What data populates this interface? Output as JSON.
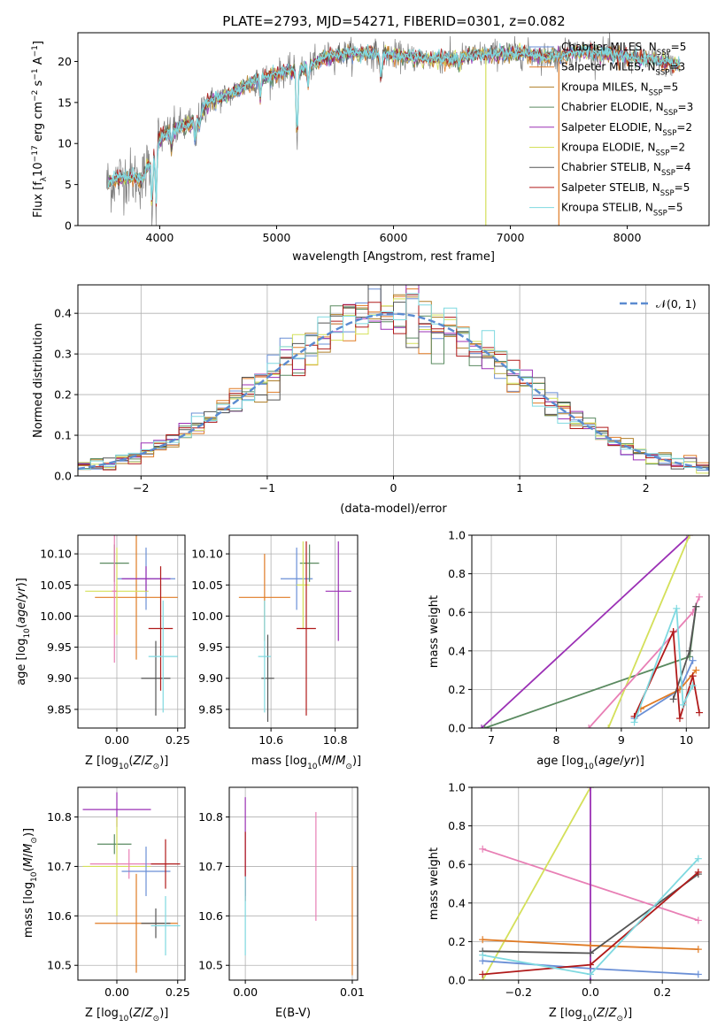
{
  "figure": {
    "title": "PLATE=2793, MJD=54271, FIBERID=0301, z=0.082"
  },
  "colors": {
    "Chabrier MILES": "#6a8fd6",
    "Salpeter MILES": "#e07b25",
    "Kroupa MILES": "#b07f2a",
    "Chabrier ELODIE": "#5a8a60",
    "Salpeter ELODIE": "#9b30b5",
    "Kroupa ELODIE": "#d4e05a",
    "Chabrier STELIB": "#555555",
    "Salpeter STELIB": "#b01a1a",
    "Kroupa STELIB": "#7fd9e0",
    "pink": "#e87fb5",
    "normal_curve": "#5b8bd0"
  },
  "chart_data": [
    {
      "id": "spectrum",
      "type": "line",
      "title": "PLATE=2793, MJD=54271, FIBERID=0301, z=0.082",
      "xlabel": "wavelength [Angstrom, rest frame]",
      "ylabel": "Flux [f_λ 10^-17 erg cm^-2 s^-1 A^-1]",
      "xlim": [
        3300,
        8700
      ],
      "ylim": [
        0,
        23.5
      ],
      "xticks": [
        4000,
        5000,
        6000,
        7000,
        8000
      ],
      "yticks": [
        0,
        5,
        10,
        15,
        20
      ],
      "legend_position": "upper-right",
      "legend": [
        {
          "name": "Chabrier MILES, N_SSP=5",
          "base": "Chabrier MILES, N",
          "sub": "SSP",
          "tail": "=5",
          "color_key": "Chabrier MILES"
        },
        {
          "name": "Salpeter MILES, N_SSP=3",
          "base": "Salpeter MILES, N",
          "sub": "SSP",
          "tail": "=3",
          "color_key": "Salpeter MILES"
        },
        {
          "name": "Kroupa MILES, N_SSP=5",
          "base": "Kroupa MILES, N",
          "sub": "SSP",
          "tail": "=5",
          "color_key": "Kroupa MILES"
        },
        {
          "name": "Chabrier ELODIE, N_SSP=3",
          "base": "Chabrier ELODIE, N",
          "sub": "SSP",
          "tail": "=3",
          "color_key": "Chabrier ELODIE"
        },
        {
          "name": "Salpeter ELODIE, N_SSP=2",
          "base": "Salpeter ELODIE, N",
          "sub": "SSP",
          "tail": "=2",
          "color_key": "Salpeter ELODIE"
        },
        {
          "name": "Kroupa ELODIE, N_SSP=2",
          "base": "Kroupa ELODIE, N",
          "sub": "SSP",
          "tail": "=2",
          "color_key": "Kroupa ELODIE"
        },
        {
          "name": "Chabrier STELIB, N_SSP=4",
          "base": "Chabrier STELIB, N",
          "sub": "SSP",
          "tail": "=4",
          "color_key": "Chabrier STELIB"
        },
        {
          "name": "Salpeter STELIB, N_SSP=5",
          "base": "Salpeter STELIB, N",
          "sub": "SSP",
          "tail": "=5",
          "color_key": "Salpeter STELIB"
        },
        {
          "name": "Kroupa STELIB, N_SSP=5",
          "base": "Kroupa STELIB, N",
          "sub": "SSP",
          "tail": "=5",
          "color_key": "Kroupa STELIB"
        }
      ],
      "continuum": [
        [
          3540,
          5
        ],
        [
          3620,
          5.5
        ],
        [
          3700,
          6
        ],
        [
          3780,
          5.8
        ],
        [
          3850,
          5.5
        ],
        [
          3920,
          8
        ],
        [
          3980,
          10.5
        ],
        [
          4100,
          11.5
        ],
        [
          4200,
          12
        ],
        [
          4300,
          12.5
        ],
        [
          4400,
          15
        ],
        [
          4500,
          15.5
        ],
        [
          4600,
          16
        ],
        [
          4700,
          16.8
        ],
        [
          4800,
          17.5
        ],
        [
          4900,
          18
        ],
        [
          5000,
          18.5
        ],
        [
          5100,
          18.8
        ],
        [
          5200,
          19
        ],
        [
          5300,
          19.5
        ],
        [
          5400,
          20.5
        ],
        [
          5500,
          20.8
        ],
        [
          5600,
          21
        ],
        [
          5700,
          21
        ],
        [
          5800,
          21
        ],
        [
          5900,
          20.8
        ],
        [
          6000,
          20.8
        ],
        [
          6100,
          20.5
        ],
        [
          6200,
          20.5
        ],
        [
          6300,
          20.3
        ],
        [
          6400,
          20.3
        ],
        [
          6500,
          20.3
        ],
        [
          6600,
          20.5
        ],
        [
          6700,
          20.7
        ],
        [
          6800,
          20.9
        ],
        [
          6900,
          21
        ],
        [
          7000,
          21
        ],
        [
          7100,
          21
        ],
        [
          7200,
          20.8
        ],
        [
          7300,
          20.6
        ],
        [
          7400,
          20.6
        ],
        [
          7500,
          21
        ],
        [
          7600,
          21.2
        ],
        [
          7700,
          21.2
        ],
        [
          7800,
          21
        ],
        [
          7900,
          20.8
        ],
        [
          8000,
          20.5
        ],
        [
          8100,
          20.3
        ],
        [
          8200,
          20.2
        ],
        [
          8300,
          20
        ],
        [
          8400,
          19.7
        ],
        [
          8450,
          19.5
        ]
      ],
      "absorption_lines": [
        [
          3934,
          0.75
        ],
        [
          3969,
          0.7
        ],
        [
          4102,
          0.15
        ],
        [
          4304,
          0.18
        ],
        [
          4340,
          0.12
        ],
        [
          4861,
          0.1
        ],
        [
          5175,
          0.45
        ],
        [
          5270,
          0.12
        ],
        [
          5893,
          0.15
        ],
        [
          6563,
          0.05
        ]
      ],
      "spikes": [
        {
          "x": 6790,
          "color_key": "Kroupa ELODIE"
        },
        {
          "x": 7415,
          "color_key": "Salpeter MILES"
        }
      ]
    },
    {
      "id": "residual_histogram",
      "type": "line",
      "xlabel": "(data-model)/error",
      "ylabel": "Normed distribution",
      "xlim": [
        -2.5,
        2.5
      ],
      "ylim": [
        0,
        0.47
      ],
      "xticks": [
        -2,
        -1,
        0,
        1,
        2
      ],
      "yticks": [
        0.0,
        0.1,
        0.2,
        0.3,
        0.4
      ],
      "grid": true,
      "legend_position": "upper-right",
      "legend": [
        {
          "name": "N(0,1)",
          "label": "𝒩(0, 1)",
          "color_key": "normal_curve"
        }
      ],
      "bin_width": 0.1,
      "series_keys": [
        "Chabrier MILES",
        "Salpeter MILES",
        "Kroupa MILES",
        "Chabrier ELODIE",
        "Salpeter ELODIE",
        "Kroupa ELODIE",
        "Chabrier STELIB",
        "Salpeter STELIB",
        "Kroupa STELIB"
      ]
    },
    {
      "id": "age_vs_Z",
      "type": "scatter",
      "xlabel": "Z [log10(Z/Z_sun)]",
      "ylabel": "age [log10(age/yr)]",
      "xlim": [
        -0.16,
        0.28
      ],
      "ylim": [
        9.82,
        10.13
      ],
      "xticks": [
        0.0,
        0.25
      ],
      "yticks": [
        9.85,
        9.9,
        9.95,
        10.0,
        10.05,
        10.1
      ],
      "grid": true,
      "points": [
        {
          "x": 0.12,
          "y": 10.06,
          "xerr": 0.12,
          "yerr": 0.05,
          "color_key": "Chabrier MILES"
        },
        {
          "x": 0.08,
          "y": 10.03,
          "xerr": 0.17,
          "yerr": 0.1,
          "color_key": "Salpeter MILES"
        },
        {
          "x": 0.0,
          "y": 10.04,
          "xerr": 0.13,
          "yerr": 0.07,
          "color_key": "Kroupa ELODIE"
        },
        {
          "x": -0.01,
          "y": 10.085,
          "xerr": 0.06,
          "yerr": 0.03,
          "color_key": "Chabrier ELODIE"
        },
        {
          "x": 0.12,
          "y": 10.06,
          "xerr": 0.1,
          "yerr": 0.02,
          "color_key": "Salpeter ELODIE"
        },
        {
          "x": 0.16,
          "y": 9.9,
          "xerr": 0.06,
          "yerr": 0.06,
          "color_key": "Chabrier STELIB"
        },
        {
          "x": 0.18,
          "y": 9.98,
          "xerr": 0.05,
          "yerr": 0.1,
          "color_key": "Salpeter STELIB"
        },
        {
          "x": 0.19,
          "y": 9.935,
          "xerr": 0.06,
          "yerr": 0.09,
          "color_key": "Kroupa STELIB"
        },
        {
          "x": -0.01,
          "y": 10.04,
          "xerr": 0.01,
          "yerr": 0.115,
          "color_key": "pink"
        }
      ]
    },
    {
      "id": "age_vs_mass",
      "type": "scatter",
      "xlabel": "mass [log10(M/M_sun)]",
      "xlim": [
        10.47,
        10.87
      ],
      "ylim": [
        9.82,
        10.13
      ],
      "xticks": [
        10.6,
        10.8
      ],
      "yticks": [
        9.85,
        9.9,
        9.95,
        10.0,
        10.05,
        10.1
      ],
      "grid": true,
      "points": [
        {
          "x": 10.68,
          "y": 10.06,
          "xerr": 0.05,
          "yerr": 0.05,
          "color_key": "Chabrier MILES"
        },
        {
          "x": 10.58,
          "y": 10.03,
          "xerr": 0.08,
          "yerr": 0.07,
          "color_key": "Salpeter MILES"
        },
        {
          "x": 10.72,
          "y": 10.085,
          "xerr": 0.03,
          "yerr": 0.03,
          "color_key": "Chabrier ELODIE"
        },
        {
          "x": 10.81,
          "y": 10.04,
          "xerr": 0.04,
          "yerr": 0.08,
          "color_key": "Salpeter ELODIE"
        },
        {
          "x": 10.7,
          "y": 10.05,
          "xerr": 0.02,
          "yerr": 0.07,
          "color_key": "Kroupa ELODIE"
        },
        {
          "x": 10.59,
          "y": 9.9,
          "xerr": 0.02,
          "yerr": 0.07,
          "color_key": "Chabrier STELIB"
        },
        {
          "x": 10.71,
          "y": 9.98,
          "xerr": 0.03,
          "yerr": 0.14,
          "color_key": "Salpeter STELIB"
        },
        {
          "x": 10.58,
          "y": 9.935,
          "xerr": 0.02,
          "yerr": 0.09,
          "color_key": "Kroupa STELIB"
        }
      ]
    },
    {
      "id": "weight_vs_age",
      "type": "line",
      "xlabel": "age [log10(age/yr)]",
      "ylabel": "mass weight",
      "xlim": [
        6.7,
        10.35
      ],
      "ylim": [
        0,
        1.0
      ],
      "xticks": [
        7,
        8,
        9,
        10
      ],
      "yticks": [
        0.0,
        0.2,
        0.4,
        0.6,
        0.8,
        1.0
      ],
      "grid": true,
      "series": [
        {
          "color_key": "Salpeter ELODIE",
          "points": [
            [
              6.85,
              0.0
            ],
            [
              10.05,
              1.0
            ]
          ]
        },
        {
          "color_key": "Chabrier ELODIE",
          "points": [
            [
              6.9,
              0.0
            ],
            [
              10.05,
              0.37
            ],
            [
              10.15,
              0.63
            ]
          ]
        },
        {
          "color_key": "Kroupa ELODIE",
          "points": [
            [
              8.8,
              0.0
            ],
            [
              10.05,
              1.0
            ]
          ]
        },
        {
          "color_key": "pink",
          "points": [
            [
              8.5,
              0.0
            ],
            [
              10.1,
              0.6
            ],
            [
              10.2,
              0.68
            ]
          ]
        },
        {
          "color_key": "Chabrier MILES",
          "points": [
            [
              9.2,
              0.05
            ],
            [
              9.9,
              0.2
            ],
            [
              10.1,
              0.35
            ]
          ]
        },
        {
          "color_key": "Salpeter MILES",
          "points": [
            [
              9.3,
              0.1
            ],
            [
              9.9,
              0.2
            ],
            [
              10.15,
              0.3
            ]
          ]
        },
        {
          "color_key": "Chabrier STELIB",
          "points": [
            [
              9.8,
              0.15
            ],
            [
              10.05,
              0.4
            ],
            [
              10.15,
              0.63
            ]
          ]
        },
        {
          "color_key": "Salpeter STELIB",
          "points": [
            [
              9.2,
              0.06
            ],
            [
              9.8,
              0.5
            ],
            [
              9.9,
              0.05
            ],
            [
              10.1,
              0.27
            ],
            [
              10.2,
              0.08
            ]
          ]
        },
        {
          "color_key": "Kroupa STELIB",
          "points": [
            [
              9.2,
              0.03
            ],
            [
              9.85,
              0.62
            ],
            [
              9.95,
              0.12
            ],
            [
              10.1,
              0.22
            ]
          ]
        }
      ]
    },
    {
      "id": "mass_vs_Z",
      "type": "scatter",
      "xlabel": "Z [log10(Z/Z_sun)]",
      "ylabel": "mass [log10(M/M_sun)]",
      "xlim": [
        -0.16,
        0.28
      ],
      "ylim": [
        10.47,
        10.86
      ],
      "xticks": [
        0.0,
        0.25
      ],
      "yticks": [
        10.5,
        10.6,
        10.7,
        10.8
      ],
      "grid": true,
      "points": [
        {
          "x": 0.0,
          "y": 10.815,
          "xerr": 0.14,
          "yerr": 0.035,
          "color_key": "Salpeter ELODIE"
        },
        {
          "x": -0.01,
          "y": 10.745,
          "xerr": 0.07,
          "yerr": 0.02,
          "color_key": "Chabrier ELODIE"
        },
        {
          "x": 0.0,
          "y": 10.7,
          "xerr": 0.14,
          "yerr": 0.1,
          "color_key": "Kroupa ELODIE"
        },
        {
          "x": 0.05,
          "y": 10.705,
          "xerr": 0.16,
          "yerr": 0.03,
          "color_key": "pink"
        },
        {
          "x": 0.12,
          "y": 10.69,
          "xerr": 0.1,
          "yerr": 0.05,
          "color_key": "Chabrier MILES"
        },
        {
          "x": 0.08,
          "y": 10.585,
          "xerr": 0.17,
          "yerr": 0.1,
          "color_key": "Salpeter MILES"
        },
        {
          "x": 0.16,
          "y": 10.585,
          "xerr": 0.06,
          "yerr": 0.03,
          "color_key": "Chabrier STELIB"
        },
        {
          "x": 0.2,
          "y": 10.705,
          "xerr": 0.06,
          "yerr": 0.05,
          "color_key": "Salpeter STELIB"
        },
        {
          "x": 0.2,
          "y": 10.58,
          "xerr": 0.06,
          "yerr": 0.06,
          "color_key": "Kroupa STELIB"
        }
      ]
    },
    {
      "id": "mass_vs_ebv",
      "type": "scatter",
      "xlabel": "E(B-V)",
      "xlim": [
        -0.0015,
        0.0105
      ],
      "ylim": [
        10.47,
        10.86
      ],
      "xticks": [
        0.0,
        0.01
      ],
      "yticks": [
        10.5,
        10.6,
        10.7,
        10.8
      ],
      "grid": true,
      "points": [
        {
          "x": 0.0,
          "y": 10.74,
          "yerr": 0.1,
          "color_key": "Salpeter ELODIE"
        },
        {
          "x": 0.0,
          "y": 10.7,
          "yerr": 0.07,
          "color_key": "Salpeter STELIB"
        },
        {
          "x": 0.0,
          "y": 10.6,
          "yerr": 0.08,
          "color_key": "Kroupa STELIB"
        },
        {
          "x": 0.0066,
          "y": 10.7,
          "yerr": 0.11,
          "color_key": "pink"
        },
        {
          "x": 0.01,
          "y": 10.59,
          "yerr": 0.11,
          "color_key": "Salpeter MILES"
        }
      ]
    },
    {
      "id": "weight_vs_Z",
      "type": "line",
      "xlabel": "Z [log10(Z/Z_sun)]",
      "ylabel": "mass weight",
      "xlim": [
        -0.33,
        0.33
      ],
      "ylim": [
        0,
        1.0
      ],
      "xticks": [
        -0.2,
        0.0,
        0.2
      ],
      "yticks": [
        0.0,
        0.2,
        0.4,
        0.6,
        0.8,
        1.0
      ],
      "grid": true,
      "series": [
        {
          "color_key": "pink",
          "points": [
            [
              -0.3,
              0.68
            ],
            [
              0.3,
              0.31
            ]
          ]
        },
        {
          "color_key": "Kroupa ELODIE",
          "points": [
            [
              -0.3,
              0.0
            ],
            [
              0.0,
              1.0
            ]
          ]
        },
        {
          "color_key": "Salpeter ELODIE",
          "points": [
            [
              0.0,
              0.0
            ],
            [
              0.0,
              1.0
            ]
          ]
        },
        {
          "color_key": "Salpeter MILES",
          "points": [
            [
              -0.3,
              0.21
            ],
            [
              0.0,
              0.18
            ],
            [
              0.3,
              0.16
            ]
          ]
        },
        {
          "color_key": "Chabrier STELIB",
          "points": [
            [
              -0.3,
              0.15
            ],
            [
              0.0,
              0.14
            ],
            [
              0.3,
              0.55
            ]
          ]
        },
        {
          "color_key": "Chabrier MILES",
          "points": [
            [
              -0.3,
              0.1
            ],
            [
              0.0,
              0.06
            ],
            [
              0.3,
              0.03
            ]
          ]
        },
        {
          "color_key": "Salpeter STELIB",
          "points": [
            [
              -0.3,
              0.03
            ],
            [
              0.0,
              0.08
            ],
            [
              0.3,
              0.56
            ]
          ]
        },
        {
          "color_key": "Kroupa STELIB",
          "points": [
            [
              -0.3,
              0.13
            ],
            [
              0.0,
              0.03
            ],
            [
              0.3,
              0.63
            ]
          ]
        }
      ]
    }
  ]
}
